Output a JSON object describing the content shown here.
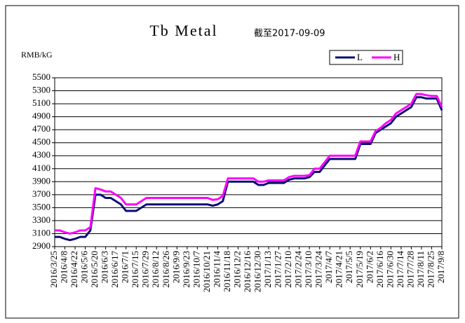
{
  "chart_data": {
    "type": "line",
    "title": "Tb Metal",
    "subtitle": "截至2017-09-09",
    "y_label": "RMB/kG",
    "categories": [
      "2016/3/25",
      null,
      "2016/4/8",
      null,
      "2016/4/22",
      null,
      "2016/5/6",
      null,
      "2016/5/20",
      null,
      "2016/6/3",
      null,
      "2016/6/17",
      null,
      "2016/7/1",
      null,
      "2016/7/15",
      null,
      "2016/7/29",
      null,
      "2016/8/12",
      null,
      "2016/8/26",
      null,
      "2016/9/9",
      null,
      "2016/9/23",
      null,
      "2016/10/7",
      null,
      "2016/10/21",
      null,
      "2016/11/4",
      null,
      "2016/11/18",
      null,
      "2016/12/2",
      null,
      "2016/12/16",
      null,
      "2016/12/30",
      null,
      "2017/1/13",
      null,
      "2017/1/27",
      null,
      "2017/2/10",
      null,
      "2017/2/24",
      null,
      "2017/3/10",
      null,
      "2017/3/24",
      null,
      "2017/4/7",
      null,
      "2017/4/21",
      null,
      "2017/5/5",
      null,
      "2017/5/19",
      null,
      "2017/6/2",
      null,
      "2017/6/16",
      null,
      "2017/6/30",
      null,
      "2017/7/14",
      null,
      "2017/7/28",
      null,
      "2017/8/11",
      null,
      "2017/8/25",
      null,
      "2017/9/8"
    ],
    "series": [
      {
        "name": "L",
        "color": "#0c0c78",
        "values": [
          3050,
          3050,
          3020,
          3000,
          3020,
          3050,
          3050,
          3150,
          3700,
          3700,
          3650,
          3650,
          3600,
          3550,
          3450,
          3450,
          3450,
          3500,
          3550,
          3550,
          3550,
          3550,
          3550,
          3550,
          3550,
          3550,
          3550,
          3550,
          3550,
          3550,
          3550,
          3530,
          3550,
          3600,
          3900,
          3900,
          3900,
          3900,
          3900,
          3900,
          3850,
          3850,
          3880,
          3880,
          3880,
          3880,
          3930,
          3950,
          3950,
          3950,
          3970,
          4050,
          4050,
          4150,
          4250,
          4250,
          4250,
          4250,
          4250,
          4250,
          4480,
          4480,
          4480,
          4650,
          4700,
          4750,
          4800,
          4900,
          4950,
          5000,
          5050,
          5200,
          5200,
          5180,
          5180,
          5180,
          5000
        ]
      },
      {
        "name": "H",
        "color": "#ff00ff",
        "values": [
          3150,
          3150,
          3120,
          3100,
          3120,
          3150,
          3150,
          3200,
          3800,
          3780,
          3750,
          3750,
          3700,
          3650,
          3550,
          3550,
          3550,
          3600,
          3650,
          3650,
          3650,
          3650,
          3650,
          3650,
          3650,
          3650,
          3650,
          3650,
          3650,
          3650,
          3650,
          3620,
          3630,
          3680,
          3950,
          3950,
          3950,
          3950,
          3950,
          3950,
          3900,
          3900,
          3920,
          3920,
          3920,
          3920,
          3970,
          3990,
          3990,
          3990,
          4000,
          4100,
          4100,
          4200,
          4300,
          4300,
          4300,
          4300,
          4300,
          4300,
          4520,
          4520,
          4520,
          4680,
          4730,
          4800,
          4850,
          4950,
          5000,
          5050,
          5100,
          5250,
          5250,
          5230,
          5220,
          5220,
          5050
        ]
      }
    ],
    "ylim": [
      2900,
      5500
    ],
    "yticks": [
      2900,
      3100,
      3300,
      3500,
      3700,
      3900,
      4100,
      4300,
      4500,
      4700,
      4900,
      5100,
      5300,
      5500
    ],
    "grid": true
  }
}
